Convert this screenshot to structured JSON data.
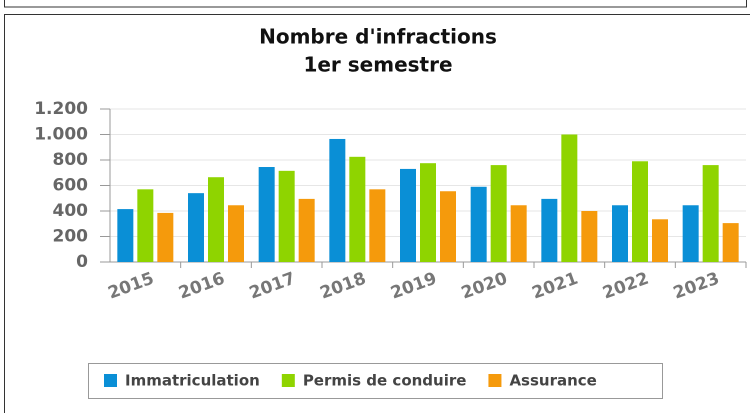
{
  "chart_data": {
    "type": "bar",
    "title": "Nombre d'infractions",
    "subtitle": "1er semestre",
    "categories": [
      "2015",
      "2016",
      "2017",
      "2018",
      "2019",
      "2020",
      "2021",
      "2022",
      "2023"
    ],
    "series": [
      {
        "name": "Immatriculation",
        "color": "#0a8fd6",
        "values": [
          415,
          540,
          745,
          965,
          730,
          590,
          495,
          445,
          445
        ]
      },
      {
        "name": "Permis de conduire",
        "color": "#8fd400",
        "values": [
          570,
          665,
          715,
          825,
          775,
          760,
          1000,
          790,
          760
        ]
      },
      {
        "name": "Assurance",
        "color": "#f59a0c",
        "values": [
          385,
          445,
          495,
          570,
          555,
          445,
          400,
          335,
          305
        ]
      }
    ],
    "ylim": [
      0,
      1200
    ],
    "yticks": [
      0,
      200,
      400,
      600,
      800,
      {
        "value": 1000,
        "label": "1.000"
      },
      {
        "value": 1200,
        "label": "1.200"
      }
    ],
    "grid": true,
    "legend": "bottom"
  }
}
